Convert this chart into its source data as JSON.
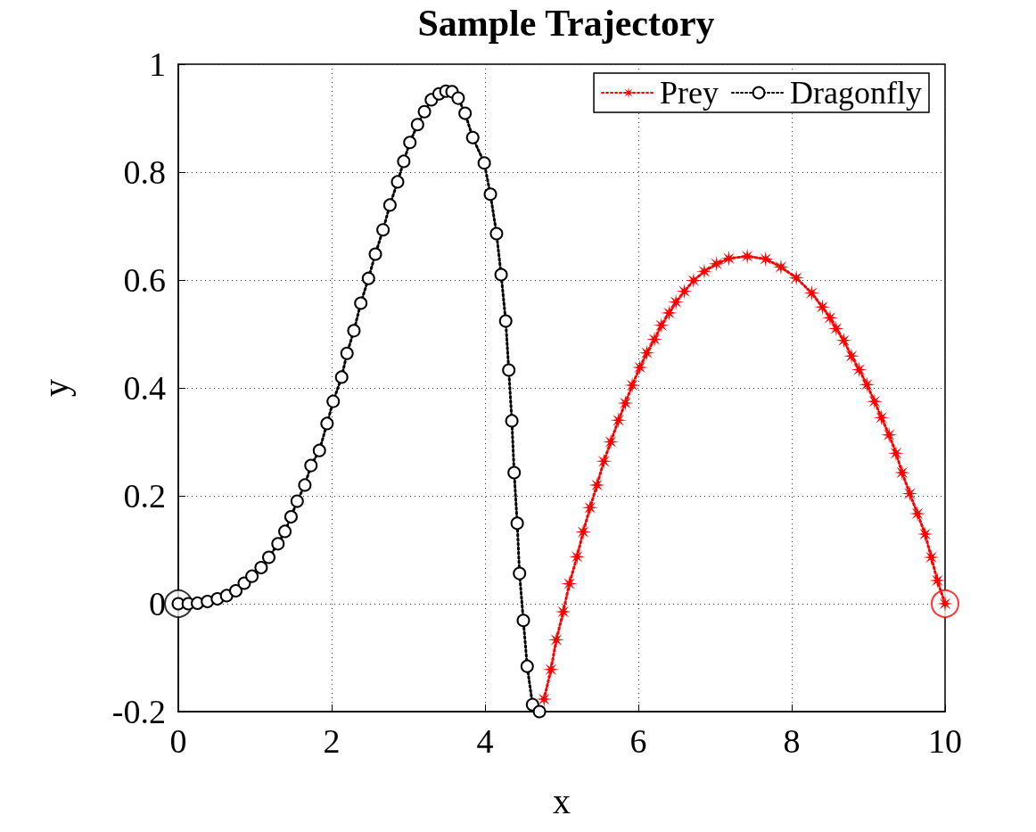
{
  "chart_data": {
    "type": "line",
    "title": "Sample Trajectory",
    "xlabel": "x",
    "ylabel": "y",
    "xlim": [
      0,
      10
    ],
    "xticks": [
      0,
      2,
      4,
      6,
      8,
      10
    ],
    "ylim": [
      -0.2,
      1
    ],
    "yticks": [
      -0.2,
      0,
      0.2,
      0.4,
      0.6,
      0.8,
      1
    ],
    "grid": true,
    "legend": "top right",
    "line_style": "dotted",
    "series": [
      {
        "name": "Prey",
        "color": "#ff0000",
        "marker": "star",
        "x": [
          4.77,
          4.86,
          4.93,
          5.02,
          5.1,
          5.2,
          5.28,
          5.37,
          5.46,
          5.55,
          5.64,
          5.74,
          5.83,
          5.92,
          6.02,
          6.11,
          6.21,
          6.3,
          6.4,
          6.49,
          6.6,
          6.72,
          6.86,
          7.02,
          7.18,
          7.42,
          7.66,
          7.86,
          8.06,
          8.26,
          8.4,
          8.5,
          8.58,
          8.68,
          8.78,
          8.88,
          8.98,
          9.08,
          9.17,
          9.27,
          9.36,
          9.44,
          9.54,
          9.64,
          9.74,
          9.82,
          9.9,
          10.0
        ],
        "values": [
          -0.177,
          -0.122,
          -0.067,
          -0.015,
          0.037,
          0.087,
          0.133,
          0.178,
          0.22,
          0.264,
          0.3,
          0.34,
          0.372,
          0.405,
          0.438,
          0.465,
          0.49,
          0.516,
          0.539,
          0.559,
          0.579,
          0.599,
          0.616,
          0.63,
          0.64,
          0.644,
          0.639,
          0.624,
          0.604,
          0.576,
          0.55,
          0.53,
          0.51,
          0.488,
          0.459,
          0.434,
          0.406,
          0.375,
          0.345,
          0.313,
          0.279,
          0.243,
          0.204,
          0.167,
          0.129,
          0.086,
          0.043,
          0
        ]
      },
      {
        "name": "Dragonfly",
        "color": "#000000",
        "marker": "circle",
        "x": [
          0,
          0.13,
          0.25,
          0.38,
          0.51,
          0.63,
          0.75,
          0.86,
          0.96,
          1.08,
          1.18,
          1.3,
          1.39,
          1.47,
          1.55,
          1.65,
          1.73,
          1.84,
          1.94,
          2.02,
          2.13,
          2.2,
          2.29,
          2.38,
          2.48,
          2.57,
          2.67,
          2.76,
          2.86,
          2.94,
          3.02,
          3.12,
          3.21,
          3.3,
          3.4,
          3.49,
          3.57,
          3.65,
          3.74,
          3.84,
          3.99,
          4.07,
          4.15,
          4.21,
          4.27,
          4.31,
          4.35,
          4.38,
          4.42,
          4.45,
          4.5,
          4.55,
          4.62,
          4.71
        ],
        "values": [
          0,
          0,
          0.001,
          0.004,
          0.009,
          0.015,
          0.024,
          0.038,
          0.051,
          0.067,
          0.086,
          0.111,
          0.134,
          0.161,
          0.19,
          0.22,
          0.256,
          0.284,
          0.334,
          0.375,
          0.42,
          0.464,
          0.506,
          0.557,
          0.603,
          0.648,
          0.693,
          0.739,
          0.782,
          0.82,
          0.855,
          0.888,
          0.912,
          0.934,
          0.945,
          0.95,
          0.949,
          0.937,
          0.909,
          0.864,
          0.817,
          0.759,
          0.686,
          0.61,
          0.524,
          0.433,
          0.339,
          0.243,
          0.149,
          0.056,
          -0.031,
          -0.116,
          -0.187,
          -0.2
        ]
      },
      {
        "type": "scatter",
        "color": "#000000",
        "marker": "circle",
        "x": [
          0
        ],
        "values": [
          0
        ]
      },
      {
        "type": "scatter",
        "color": "#ff0000",
        "marker": "circle",
        "x": [
          10
        ],
        "values": [
          0
        ]
      }
    ]
  }
}
